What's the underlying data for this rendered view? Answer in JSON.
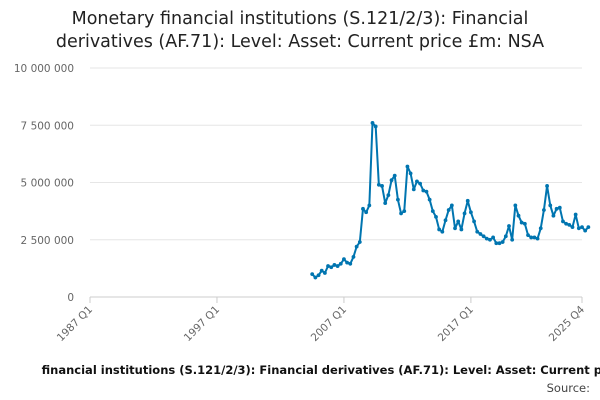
{
  "chart_data": {
    "type": "line",
    "title_lines": [
      "Monetary financial institutions (S.121/2/3): Financial",
      "derivatives (AF.71): Level: Asset: Current price £m: NSA"
    ],
    "xlabel": "",
    "ylabel": "",
    "x_ticks": [
      "1987 Q1",
      "1997 Q1",
      "2007 Q1",
      "2017 Q1",
      "2025 Q4"
    ],
    "y_ticks": [
      "0",
      "2 500 000",
      "5 000 000",
      "7 500 000",
      "10 000 000"
    ],
    "y_tick_values": [
      0,
      2500000,
      5000000,
      7500000,
      10000000
    ],
    "ylim": [
      0,
      10000000
    ],
    "x_range_quarters": [
      "1987 Q1",
      "2025 Q4"
    ],
    "grid": true,
    "line_color": "#0075b0",
    "series": [
      {
        "name": "Monetary financial institutions (S.121/2/3): Financial derivatives (AF.71): Level: Asset: Current price £m: NSA",
        "start_quarter": "2004 Q3",
        "values": [
          1000000,
          850000,
          950000,
          1150000,
          1050000,
          1350000,
          1300000,
          1400000,
          1350000,
          1450000,
          1650000,
          1500000,
          1450000,
          1750000,
          2200000,
          2400000,
          3850000,
          3700000,
          4000000,
          7600000,
          7450000,
          4900000,
          4850000,
          4100000,
          4450000,
          5100000,
          5300000,
          4250000,
          3650000,
          3750000,
          5700000,
          5400000,
          4700000,
          5050000,
          4950000,
          4650000,
          4600000,
          4250000,
          3750000,
          3500000,
          2950000,
          2850000,
          3350000,
          3800000,
          4000000,
          3000000,
          3300000,
          2950000,
          3650000,
          4200000,
          3700000,
          3300000,
          2850000,
          2750000,
          2650000,
          2550000,
          2500000,
          2600000,
          2350000,
          2350000,
          2400000,
          2650000,
          3100000,
          2500000,
          4000000,
          3550000,
          3250000,
          3200000,
          2700000,
          2600000,
          2600000,
          2550000,
          3000000,
          3800000,
          4850000,
          4000000,
          3550000,
          3850000,
          3900000,
          3300000,
          3200000,
          3150000,
          3050000,
          3600000,
          3000000,
          3050000,
          2900000,
          3050000
        ]
      }
    ]
  },
  "footer": {
    "legend_text": "financial institutions (S.121/2/3): Financial derivatives (AF.71): Level: Asset: Current p",
    "source_label": "Source:"
  }
}
